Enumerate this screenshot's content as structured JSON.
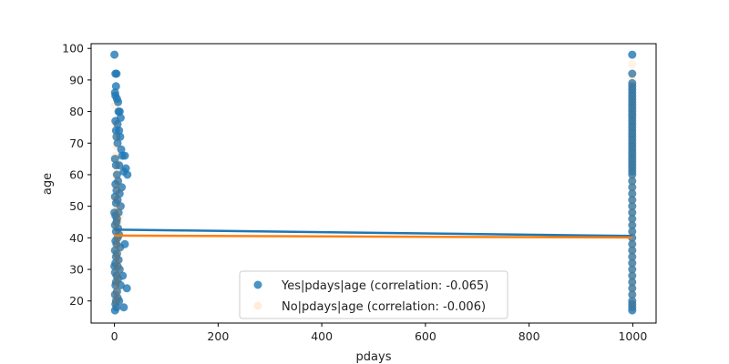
{
  "chart_data": {
    "type": "scatter",
    "xlabel": "pdays",
    "ylabel": "age",
    "xlim": [
      -45,
      1045
    ],
    "ylim": [
      13,
      101.5
    ],
    "xticks": [
      0,
      200,
      400,
      600,
      800,
      1000
    ],
    "yticks": [
      20,
      30,
      40,
      50,
      60,
      70,
      80,
      90,
      100
    ],
    "grid": false,
    "legend_position": "lower-center",
    "series": [
      {
        "name": "Yes|pdays|age (correlation: -0.065)",
        "color": "#1f77b4",
        "alpha": 0.8,
        "regression": {
          "x": [
            0,
            999
          ],
          "y": [
            42.6,
            40.6
          ]
        },
        "points": [
          [
            0,
            98
          ],
          [
            2,
            92
          ],
          [
            4,
            92
          ],
          [
            3,
            88
          ],
          [
            1,
            86
          ],
          [
            2,
            85
          ],
          [
            5,
            84
          ],
          [
            7,
            83
          ],
          [
            8,
            80
          ],
          [
            10,
            80
          ],
          [
            12,
            78
          ],
          [
            2,
            77
          ],
          [
            6,
            76
          ],
          [
            3,
            74
          ],
          [
            9,
            74
          ],
          [
            4,
            72
          ],
          [
            11,
            72
          ],
          [
            6,
            70
          ],
          [
            13,
            68
          ],
          [
            15,
            66
          ],
          [
            1,
            65
          ],
          [
            20,
            66
          ],
          [
            3,
            63
          ],
          [
            9,
            63
          ],
          [
            22,
            62
          ],
          [
            25,
            60
          ],
          [
            18,
            61
          ],
          [
            5,
            60
          ],
          [
            7,
            58
          ],
          [
            2,
            57
          ],
          [
            14,
            56
          ],
          [
            4,
            55
          ],
          [
            10,
            54
          ],
          [
            1,
            53
          ],
          [
            6,
            52
          ],
          [
            3,
            51
          ],
          [
            12,
            50
          ],
          [
            8,
            48
          ],
          [
            2,
            47
          ],
          [
            5,
            46
          ],
          [
            4,
            45
          ],
          [
            1,
            44
          ],
          [
            7,
            43
          ],
          [
            3,
            42
          ],
          [
            9,
            41
          ],
          [
            6,
            40
          ],
          [
            2,
            39
          ],
          [
            4,
            38
          ],
          [
            20,
            38
          ],
          [
            11,
            37
          ],
          [
            1,
            36
          ],
          [
            5,
            35
          ],
          [
            3,
            34
          ],
          [
            8,
            33
          ],
          [
            2,
            32
          ],
          [
            6,
            31
          ],
          [
            10,
            30
          ],
          [
            1,
            29
          ],
          [
            4,
            28
          ],
          [
            16,
            28
          ],
          [
            7,
            27
          ],
          [
            3,
            26
          ],
          [
            2,
            25
          ],
          [
            12,
            25
          ],
          [
            24,
            24
          ],
          [
            5,
            23
          ],
          [
            1,
            22
          ],
          [
            6,
            21
          ],
          [
            3,
            20
          ],
          [
            9,
            20
          ],
          [
            2,
            19
          ],
          [
            18,
            18
          ],
          [
            4,
            18
          ],
          [
            1,
            17
          ],
          [
            0,
            48
          ],
          [
            0,
            31
          ],
          [
            999,
            98
          ],
          [
            999,
            92
          ],
          [
            999,
            89
          ],
          [
            999,
            88
          ],
          [
            999,
            87
          ],
          [
            999,
            86
          ],
          [
            999,
            85
          ],
          [
            999,
            84
          ],
          [
            999,
            83
          ],
          [
            999,
            82
          ],
          [
            999,
            81
          ],
          [
            999,
            80
          ],
          [
            999,
            79
          ],
          [
            999,
            78
          ],
          [
            999,
            77
          ],
          [
            999,
            76
          ],
          [
            999,
            75
          ],
          [
            999,
            74
          ],
          [
            999,
            73
          ],
          [
            999,
            72
          ],
          [
            999,
            71
          ],
          [
            999,
            70
          ],
          [
            999,
            69
          ],
          [
            999,
            68
          ],
          [
            999,
            67
          ],
          [
            999,
            66
          ],
          [
            999,
            65
          ],
          [
            999,
            64
          ],
          [
            999,
            63
          ],
          [
            999,
            62
          ],
          [
            999,
            61
          ],
          [
            999,
            60
          ],
          [
            999,
            58
          ],
          [
            999,
            56
          ],
          [
            999,
            54
          ],
          [
            999,
            52
          ],
          [
            999,
            50
          ],
          [
            999,
            48
          ],
          [
            999,
            46
          ],
          [
            999,
            44
          ],
          [
            999,
            42
          ],
          [
            999,
            40
          ],
          [
            999,
            38
          ],
          [
            999,
            36
          ],
          [
            999,
            34
          ],
          [
            999,
            32
          ],
          [
            999,
            30
          ],
          [
            999,
            28
          ],
          [
            999,
            26
          ],
          [
            999,
            24
          ],
          [
            999,
            22
          ],
          [
            999,
            20
          ],
          [
            999,
            19
          ],
          [
            999,
            18
          ],
          [
            999,
            17
          ]
        ]
      },
      {
        "name": "No|pdays|age (correlation: -0.006)",
        "color": "#ff7f0e",
        "alpha": 0.1,
        "regression": {
          "x": [
            0,
            999
          ],
          "y": [
            40.7,
            40.1
          ]
        },
        "points": [
          [
            1,
            82
          ],
          [
            2,
            76
          ],
          [
            3,
            72
          ],
          [
            4,
            69
          ],
          [
            2,
            66
          ],
          [
            5,
            64
          ],
          [
            6,
            62
          ],
          [
            3,
            60
          ],
          [
            7,
            58
          ],
          [
            4,
            56
          ],
          [
            8,
            55
          ],
          [
            5,
            53
          ],
          [
            2,
            52
          ],
          [
            9,
            50
          ],
          [
            6,
            49
          ],
          [
            3,
            48
          ],
          [
            10,
            47
          ],
          [
            4,
            46
          ],
          [
            7,
            45
          ],
          [
            2,
            44
          ],
          [
            5,
            43
          ],
          [
            11,
            42
          ],
          [
            3,
            41
          ],
          [
            6,
            40
          ],
          [
            8,
            39
          ],
          [
            4,
            38
          ],
          [
            2,
            37
          ],
          [
            9,
            36
          ],
          [
            5,
            35
          ],
          [
            3,
            34
          ],
          [
            7,
            33
          ],
          [
            6,
            32
          ],
          [
            4,
            31
          ],
          [
            10,
            30
          ],
          [
            2,
            29
          ],
          [
            8,
            28
          ],
          [
            5,
            27
          ],
          [
            3,
            26
          ],
          [
            6,
            25
          ],
          [
            4,
            24
          ],
          [
            7,
            23
          ],
          [
            2,
            22
          ],
          [
            5,
            21
          ],
          [
            3,
            20
          ],
          [
            4,
            19
          ],
          [
            999,
            95
          ],
          [
            999,
            92
          ],
          [
            999,
            90
          ],
          [
            999,
            88
          ],
          [
            999,
            86
          ],
          [
            999,
            84
          ],
          [
            999,
            82
          ],
          [
            999,
            80
          ],
          [
            999,
            78
          ],
          [
            999,
            76
          ],
          [
            999,
            74
          ],
          [
            999,
            72
          ],
          [
            999,
            70
          ],
          [
            999,
            68
          ],
          [
            999,
            66
          ],
          [
            999,
            64
          ],
          [
            999,
            62
          ],
          [
            999,
            60
          ],
          [
            999,
            58
          ],
          [
            999,
            56
          ],
          [
            999,
            54
          ],
          [
            999,
            52
          ],
          [
            999,
            50
          ],
          [
            999,
            48
          ],
          [
            999,
            46
          ],
          [
            999,
            44
          ],
          [
            999,
            42
          ],
          [
            999,
            40
          ],
          [
            999,
            38
          ],
          [
            999,
            36
          ],
          [
            999,
            34
          ],
          [
            999,
            32
          ],
          [
            999,
            30
          ],
          [
            999,
            28
          ],
          [
            999,
            26
          ],
          [
            999,
            24
          ],
          [
            999,
            22
          ],
          [
            999,
            20
          ],
          [
            999,
            18
          ]
        ]
      }
    ]
  }
}
